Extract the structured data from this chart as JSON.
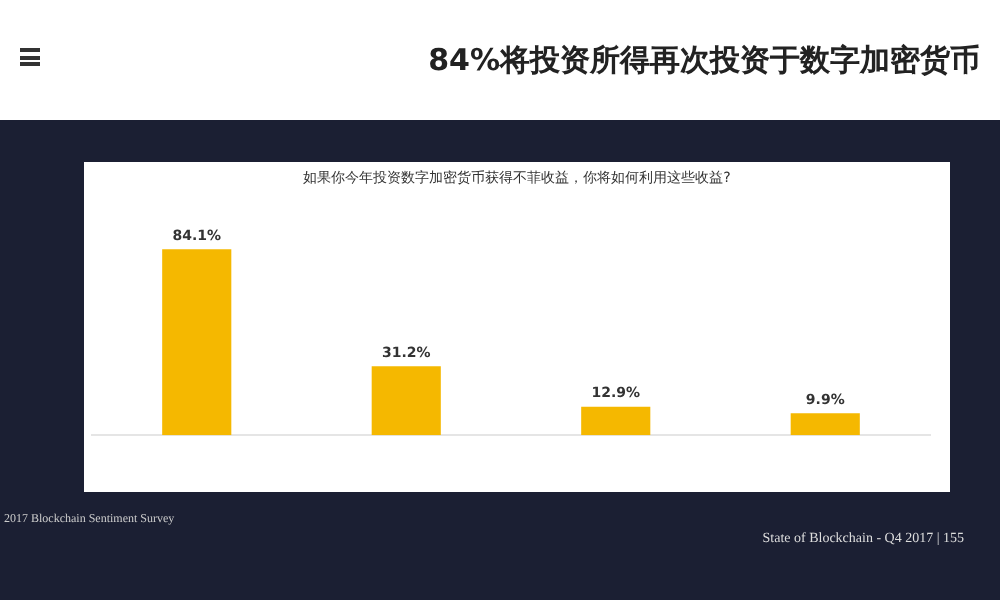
{
  "chart_data": {
    "type": "bar",
    "title": "84%将投资所得再次投资于数字加密货币",
    "subtitle": "如果你今年投资数字加密货币获得不菲收益，你将如何利用这些收益?",
    "categories": [
      null,
      null,
      null,
      null
    ],
    "values": [
      84.1,
      31.2,
      12.9,
      9.9
    ],
    "value_labels": [
      "84.1%",
      "31.2%",
      "12.9%",
      "9.9%"
    ],
    "color": "#f5b800",
    "tick_labels": "x",
    "annotations": [
      "2017 Blockchain Sentiment Survey",
      "State of Blockchain - Q4 2017  |  155"
    ]
  }
}
